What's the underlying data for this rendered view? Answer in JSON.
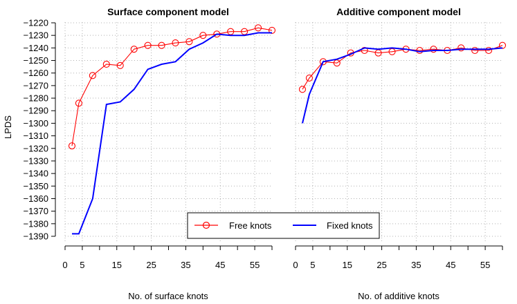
{
  "chart_data": [
    {
      "type": "line",
      "title": "Surface component model",
      "xlabel": "No. of surface knots",
      "ylabel": "LPDS",
      "xlim": [
        0,
        60
      ],
      "ylim": [
        -1390,
        -1220
      ],
      "xticks": [
        0,
        5,
        15,
        25,
        35,
        45,
        55
      ],
      "xtick_labels": [
        "0",
        "5",
        "15",
        "25",
        "35",
        "45",
        "55"
      ],
      "yticks": [
        -1220,
        -1230,
        -1240,
        -1250,
        -1260,
        -1270,
        -1280,
        -1290,
        -1300,
        -1310,
        -1320,
        -1330,
        -1340,
        -1350,
        -1360,
        -1370,
        -1380,
        -1390
      ],
      "ytick_labels": [
        "−1220",
        "−1230",
        "−1240",
        "−1250",
        "−1260",
        "−1270",
        "−1280",
        "−1290",
        "−1300",
        "−1310",
        "−1320",
        "−1330",
        "−1340",
        "−1350",
        "−1360",
        "−1370",
        "−1380",
        "−1390"
      ],
      "grid": true,
      "series": [
        {
          "name": "Free knots",
          "color": "#ff0000",
          "style": "line-with-open-circles",
          "x": [
            2,
            4,
            8,
            12,
            16,
            20,
            24,
            28,
            32,
            36,
            40,
            44,
            48,
            52,
            56,
            60
          ],
          "y": [
            -1318,
            -1284,
            -1262,
            -1253,
            -1254,
            -1241,
            -1238,
            -1238,
            -1236,
            -1235,
            -1230,
            -1229,
            -1227,
            -1227,
            -1224,
            -1226
          ]
        },
        {
          "name": "Fixed knots",
          "color": "#0000ff",
          "style": "line",
          "x": [
            2,
            4,
            8,
            12,
            16,
            20,
            24,
            28,
            32,
            36,
            40,
            44,
            48,
            52,
            56,
            60
          ],
          "y": [
            -1388,
            -1388,
            -1360,
            -1285,
            -1283,
            -1273,
            -1257,
            -1253,
            -1251,
            -1241,
            -1236,
            -1229,
            -1230,
            -1230,
            -1228,
            -1228
          ]
        }
      ],
      "legend": {
        "position": "bottom-right",
        "entries": [
          "Free knots",
          "Fixed knots"
        ]
      }
    },
    {
      "type": "line",
      "title": "Additive component model",
      "xlabel": "No. of additive knots",
      "ylabel": "",
      "xlim": [
        0,
        60
      ],
      "ylim": [
        -1390,
        -1220
      ],
      "xticks": [
        0,
        5,
        15,
        25,
        35,
        45,
        55
      ],
      "xtick_labels": [
        "0",
        "5",
        "15",
        "25",
        "35",
        "45",
        "55"
      ],
      "grid": true,
      "series": [
        {
          "name": "Free knots",
          "color": "#ff0000",
          "style": "line-with-open-circles",
          "x": [
            2,
            4,
            8,
            12,
            16,
            20,
            24,
            28,
            32,
            36,
            40,
            44,
            48,
            52,
            56,
            60
          ],
          "y": [
            -1273,
            -1264,
            -1251,
            -1252,
            -1244,
            -1242,
            -1244,
            -1243,
            -1241,
            -1242,
            -1241,
            -1242,
            -1240,
            -1242,
            -1242,
            -1238
          ]
        },
        {
          "name": "Fixed knots",
          "color": "#0000ff",
          "style": "line",
          "x": [
            2,
            4,
            8,
            12,
            16,
            20,
            24,
            28,
            32,
            36,
            40,
            44,
            48,
            52,
            56,
            60
          ],
          "y": [
            -1300,
            -1277,
            -1251,
            -1249,
            -1245,
            -1240,
            -1241,
            -1240,
            -1241,
            -1243,
            -1242,
            -1242,
            -1241,
            -1241,
            -1241,
            -1240
          ]
        }
      ]
    }
  ]
}
